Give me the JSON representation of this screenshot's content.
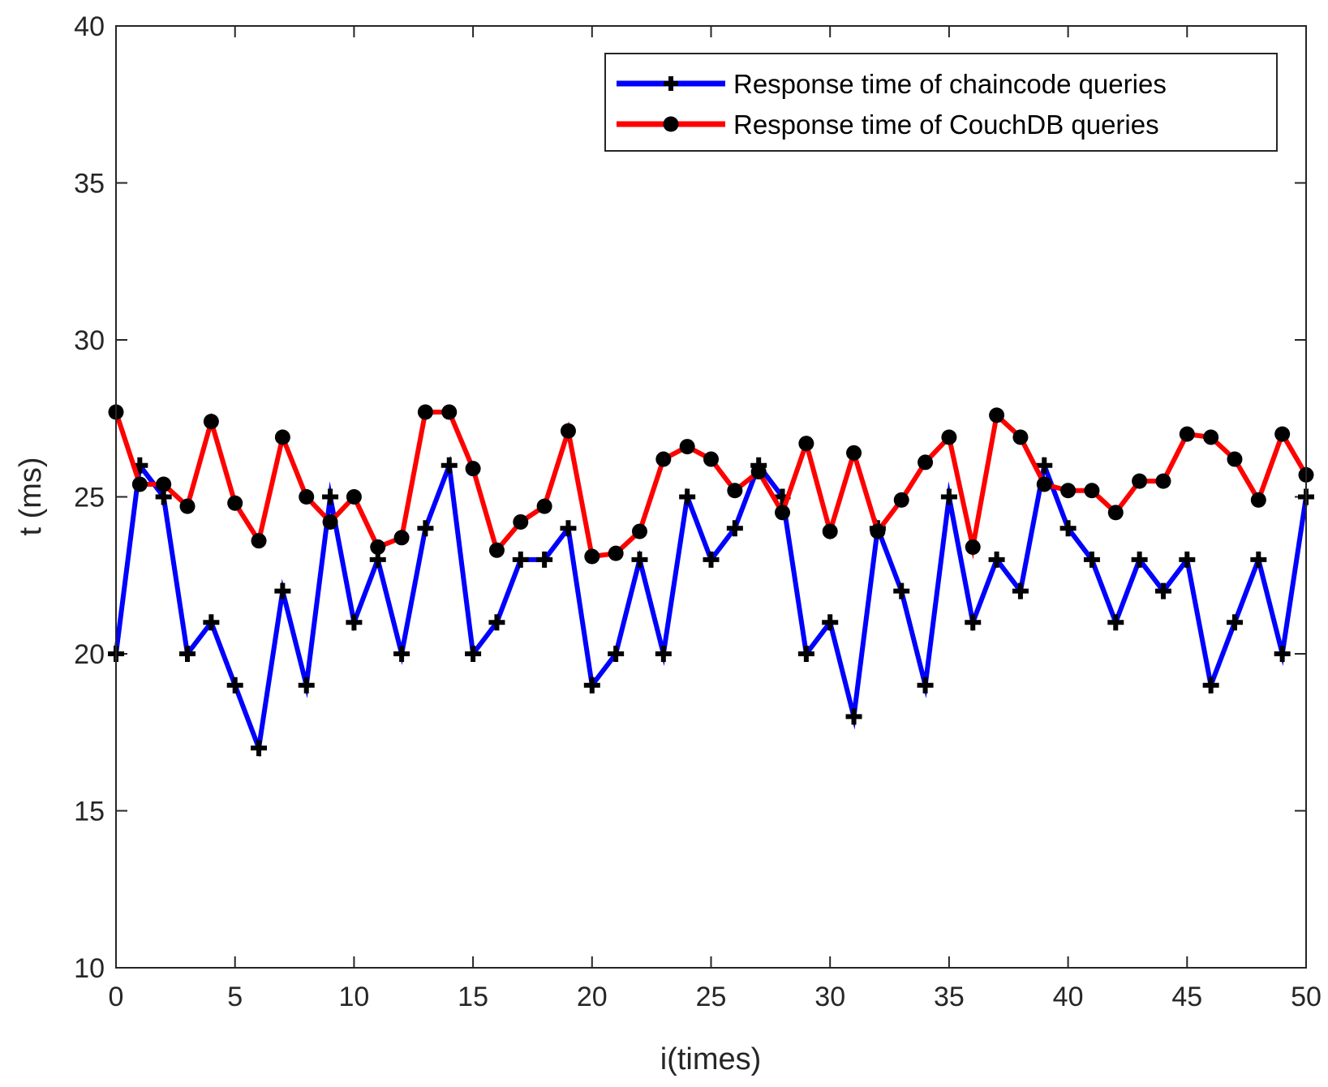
{
  "chart_data": {
    "type": "line",
    "title": "",
    "xlabel": "i(times)",
    "ylabel": "t (ms)",
    "xlim": [
      0,
      50
    ],
    "ylim": [
      10,
      40
    ],
    "xticks": [
      0,
      5,
      10,
      15,
      20,
      25,
      30,
      35,
      40,
      45,
      50
    ],
    "yticks": [
      10,
      15,
      20,
      25,
      30,
      35,
      40
    ],
    "grid": false,
    "legend_position": "top-right",
    "x": [
      0,
      1,
      2,
      3,
      4,
      5,
      6,
      7,
      8,
      9,
      10,
      11,
      12,
      13,
      14,
      15,
      16,
      17,
      18,
      19,
      20,
      21,
      22,
      23,
      24,
      25,
      26,
      27,
      28,
      29,
      30,
      31,
      32,
      33,
      34,
      35,
      36,
      37,
      38,
      39,
      40,
      41,
      42,
      43,
      44,
      45,
      46,
      47,
      48,
      49,
      50
    ],
    "series": [
      {
        "name": "Response time of chaincode queries",
        "color": "#0000ff",
        "marker": "plus",
        "values": [
          20,
          26,
          25,
          20,
          21,
          19,
          17,
          22,
          19,
          25,
          21,
          23,
          20,
          24,
          26,
          20,
          21,
          23,
          23,
          24,
          19,
          20,
          23,
          20,
          25,
          23,
          24,
          26,
          25,
          20,
          21,
          18,
          24,
          22,
          19,
          25,
          21,
          23,
          22,
          26,
          24,
          23,
          21,
          23,
          22,
          23,
          19,
          21,
          23,
          20,
          25
        ]
      },
      {
        "name": "Response time of CouchDB queries",
        "color": "#ff0000",
        "marker": "circle",
        "values": [
          27.7,
          25.4,
          25.4,
          24.7,
          27.4,
          24.8,
          23.6,
          26.9,
          25,
          24.2,
          25,
          23.4,
          23.7,
          27.7,
          27.7,
          25.9,
          23.3,
          24.2,
          24.7,
          27.1,
          23.1,
          23.2,
          23.9,
          26.2,
          26.6,
          26.2,
          25.2,
          25.8,
          24.5,
          26.7,
          23.9,
          26.4,
          23.9,
          24.9,
          26.1,
          26.9,
          23.4,
          27.6,
          26.9,
          25.4,
          25.2,
          25.2,
          24.5,
          25.5,
          25.5,
          27,
          26.9,
          26.2,
          24.9,
          27,
          25.7
        ]
      }
    ]
  }
}
